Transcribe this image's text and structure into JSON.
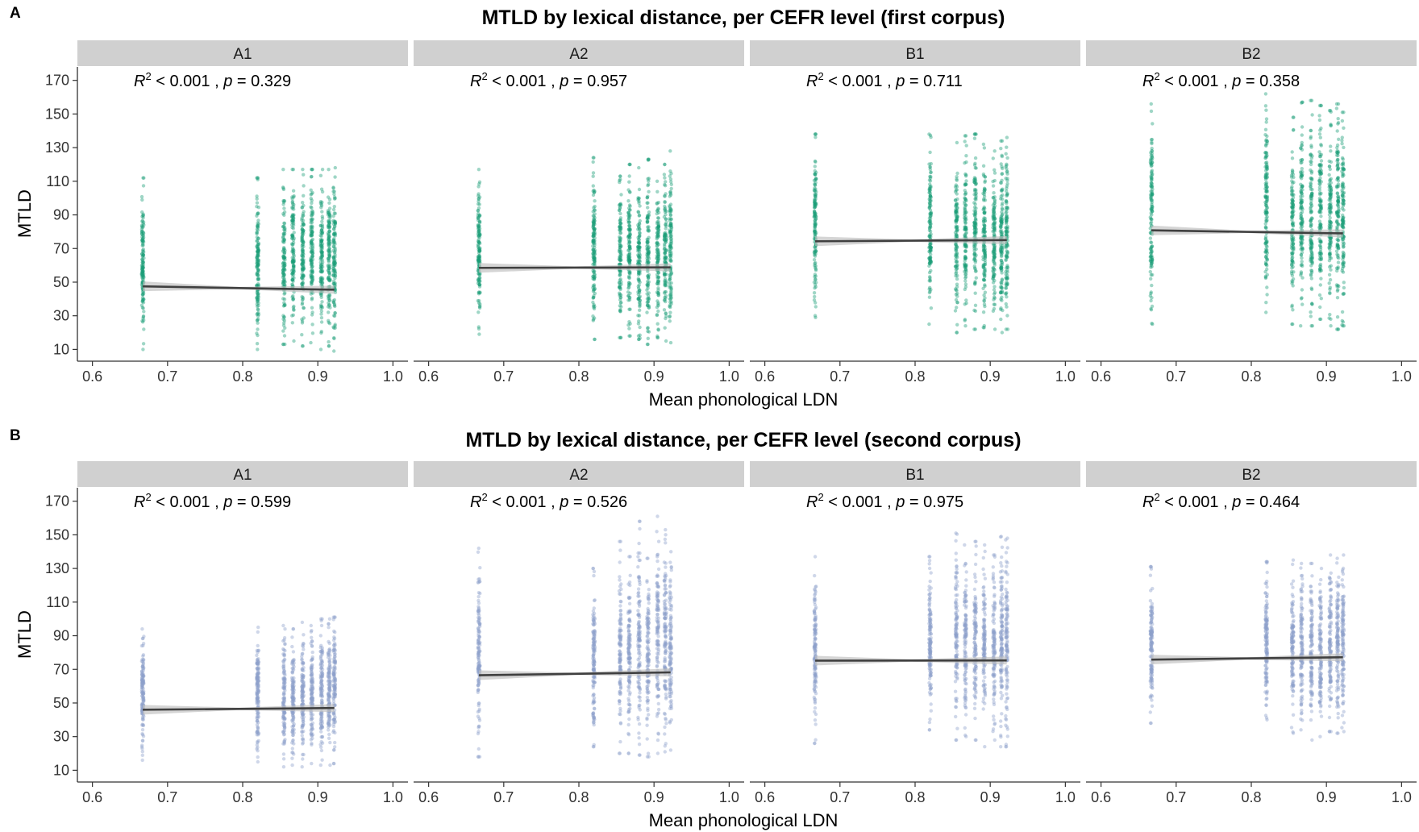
{
  "chart_data": [
    {
      "type": "scatter",
      "panel_label": "A",
      "title": "MTLD by lexical distance, per CEFR level (first corpus)",
      "xlabel": "Mean phonological LDN",
      "ylabel": "MTLD",
      "xlim": [
        0.58,
        1.02
      ],
      "ylim": [
        3,
        178
      ],
      "x_ticks": [
        "0.6",
        "0.7",
        "0.8",
        "0.9",
        "1.0"
      ],
      "y_ticks": [
        "10",
        "30",
        "50",
        "70",
        "90",
        "110",
        "130",
        "150",
        "170"
      ],
      "grid": false,
      "point_color": "#1b9e77",
      "line_color": "#404040",
      "ribbon_color": "#bebebe",
      "x_positions": [
        0.667,
        0.82,
        0.855,
        0.867,
        0.88,
        0.892,
        0.905,
        0.915,
        0.922
      ],
      "panels": [
        {
          "name": "A1",
          "stat": {
            "r2": "< 0.001",
            "p": "= 0.329"
          },
          "fit": {
            "x": [
              0.667,
              0.922
            ],
            "y": [
              47.5,
              45.5
            ]
          },
          "ranges": [
            [
              10,
              112
            ],
            [
              10,
              112
            ],
            [
              13,
              117
            ],
            [
              15,
              117
            ],
            [
              12,
              117
            ],
            [
              14,
              117
            ],
            [
              10,
              117
            ],
            [
              12,
              117
            ],
            [
              9,
              118
            ]
          ]
        },
        {
          "name": "A2",
          "stat": {
            "r2": "< 0.001",
            "p": "= 0.957"
          },
          "fit": {
            "x": [
              0.667,
              0.922
            ],
            "y": [
              58.5,
              58.8
            ]
          },
          "ranges": [
            [
              19,
              117
            ],
            [
              16,
              124
            ],
            [
              17,
              113
            ],
            [
              18,
              120
            ],
            [
              16,
              118
            ],
            [
              13,
              123
            ],
            [
              17,
              110
            ],
            [
              15,
              120
            ],
            [
              14,
              128
            ]
          ]
        },
        {
          "name": "B1",
          "stat": {
            "r2": "< 0.001",
            "p": "= 0.711"
          },
          "fit": {
            "x": [
              0.667,
              0.922
            ],
            "y": [
              74.3,
              75.0
            ]
          },
          "ranges": [
            [
              29,
              138
            ],
            [
              25,
              138
            ],
            [
              20,
              133
            ],
            [
              24,
              137
            ],
            [
              22,
              138
            ],
            [
              23,
              132
            ],
            [
              22,
              128
            ],
            [
              20,
              134
            ],
            [
              22,
              136
            ]
          ]
        },
        {
          "name": "B2",
          "stat": {
            "r2": "< 0.001",
            "p": "= 0.358"
          },
          "fit": {
            "x": [
              0.667,
              0.922
            ],
            "y": [
              80.8,
              79.0
            ]
          },
          "ranges": [
            [
              25,
              156
            ],
            [
              32,
              162
            ],
            [
              25,
              148
            ],
            [
              24,
              157
            ],
            [
              24,
              158
            ],
            [
              28,
              155
            ],
            [
              24,
              152
            ],
            [
              22,
              156
            ],
            [
              24,
              151
            ]
          ]
        }
      ]
    },
    {
      "type": "scatter",
      "panel_label": "B",
      "title": "MTLD by lexical distance, per CEFR level (second corpus)",
      "xlabel": "Mean phonological LDN",
      "ylabel": "MTLD",
      "xlim": [
        0.58,
        1.02
      ],
      "ylim": [
        3,
        178
      ],
      "x_ticks": [
        "0.6",
        "0.7",
        "0.8",
        "0.9",
        "1.0"
      ],
      "y_ticks": [
        "10",
        "30",
        "50",
        "70",
        "90",
        "110",
        "130",
        "150",
        "170"
      ],
      "grid": false,
      "point_color": "#8da0cb",
      "line_color": "#404040",
      "ribbon_color": "#bebebe",
      "x_positions": [
        0.667,
        0.82,
        0.855,
        0.867,
        0.88,
        0.892,
        0.905,
        0.915,
        0.922
      ],
      "panels": [
        {
          "name": "A1",
          "stat": {
            "r2": "< 0.001",
            "p": "= 0.599"
          },
          "fit": {
            "x": [
              0.667,
              0.922
            ],
            "y": [
              46.0,
              47.0
            ]
          },
          "ranges": [
            [
              16,
              94
            ],
            [
              15,
              95
            ],
            [
              12,
              96
            ],
            [
              13,
              94
            ],
            [
              12,
              98
            ],
            [
              14,
              96
            ],
            [
              13,
              100
            ],
            [
              13,
              100
            ],
            [
              14,
              101
            ]
          ]
        },
        {
          "name": "A2",
          "stat": {
            "r2": "< 0.001",
            "p": "= 0.526"
          },
          "fit": {
            "x": [
              0.667,
              0.922
            ],
            "y": [
              66.5,
              68.2
            ]
          },
          "ranges": [
            [
              18,
              142
            ],
            [
              24,
              130
            ],
            [
              20,
              146
            ],
            [
              20,
              137
            ],
            [
              19,
              158
            ],
            [
              18,
              136
            ],
            [
              20,
              161
            ],
            [
              21,
              153
            ],
            [
              22,
              140
            ]
          ]
        },
        {
          "name": "B1",
          "stat": {
            "r2": "< 0.001",
            "p": "= 0.975"
          },
          "fit": {
            "x": [
              0.667,
              0.922
            ],
            "y": [
              75.2,
              75.3
            ]
          },
          "ranges": [
            [
              26,
              137
            ],
            [
              34,
              137
            ],
            [
              28,
              151
            ],
            [
              30,
              144
            ],
            [
              28,
              146
            ],
            [
              24,
              144
            ],
            [
              28,
              138
            ],
            [
              24,
              149
            ],
            [
              24,
              148
            ]
          ]
        },
        {
          "name": "B2",
          "stat": {
            "r2": "< 0.001",
            "p": "= 0.464"
          },
          "fit": {
            "x": [
              0.667,
              0.922
            ],
            "y": [
              75.8,
              77.2
            ]
          },
          "ranges": [
            [
              38,
              131
            ],
            [
              40,
              134
            ],
            [
              32,
              135
            ],
            [
              34,
              133
            ],
            [
              28,
              133
            ],
            [
              30,
              130
            ],
            [
              33,
              138
            ],
            [
              32,
              136
            ],
            [
              33,
              138
            ]
          ]
        }
      ]
    }
  ]
}
